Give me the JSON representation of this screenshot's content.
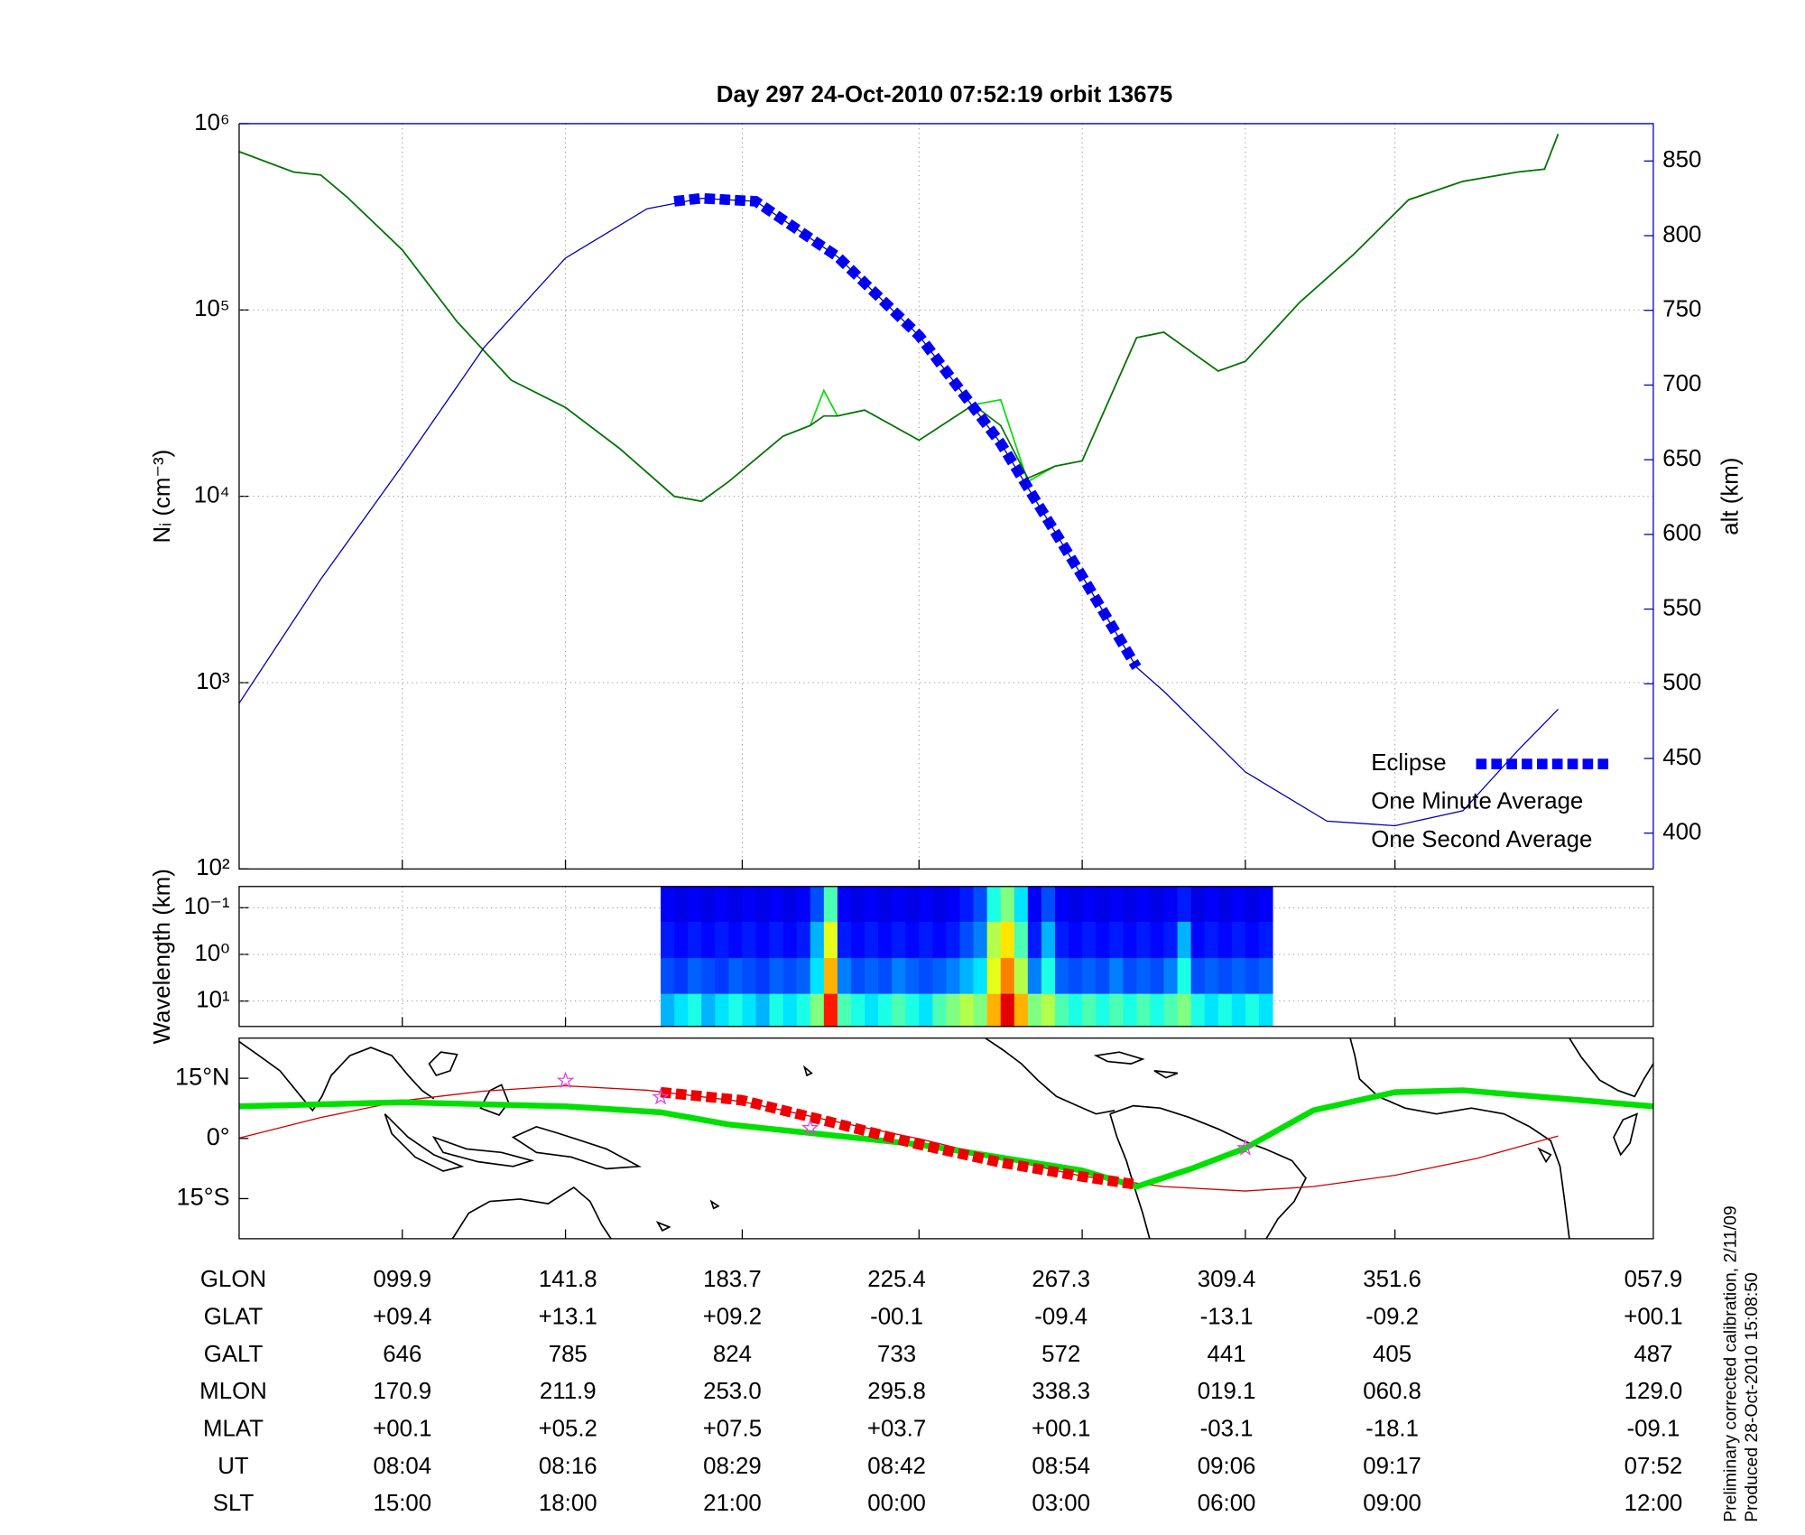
{
  "chart_data": [
    {
      "type": "line",
      "title": "Day 297  24-Oct-2010 07:52:19   orbit 13675",
      "ylabel": "Nᵢ (cm⁻³)",
      "y2label": "alt (km)",
      "y2_color": "#0000cc",
      "log_y": true,
      "grid": true,
      "legend": "lower right",
      "xlim": [
        "07:52",
        "09:36"
      ],
      "ylim": [
        100,
        1000000
      ],
      "yticks": [
        {
          "value": 100,
          "label": "10²"
        },
        {
          "value": 1000,
          "label": "10³"
        },
        {
          "value": 10000,
          "label": "10⁴"
        },
        {
          "value": 100000,
          "label": "10⁵"
        },
        {
          "value": 1000000,
          "label": "10⁶"
        }
      ],
      "y2lim": [
        376,
        875
      ],
      "y2ticks": [
        400,
        450,
        500,
        550,
        600,
        650,
        700,
        750,
        800,
        850
      ],
      "series": [
        {
          "axis": "y2",
          "color": "#0000aa",
          "line_width": 1,
          "x": [
            "07:52",
            "07:58",
            "08:04",
            "08:10",
            "08:16",
            "08:22",
            "08:26",
            "08:30",
            "08:36",
            "08:42",
            "08:48",
            "08:54",
            "08:58",
            "09:00",
            "09:06",
            "09:12",
            "09:17",
            "09:22",
            "09:26",
            "09:29"
          ],
          "values": [
            487,
            570,
            646,
            725,
            785,
            818,
            825,
            823,
            786,
            733,
            661,
            572,
            511,
            495,
            441,
            408,
            405,
            415,
            455,
            483
          ]
        },
        {
          "name": "Eclipse",
          "axis": "y2",
          "color": "#0000ff",
          "line_width": 9,
          "dashed": true,
          "x": [
            "08:24",
            "08:26",
            "08:30",
            "08:36",
            "08:42",
            "08:48",
            "08:54",
            "08:58"
          ],
          "values": [
            823,
            825,
            823,
            786,
            733,
            661,
            572,
            511
          ]
        },
        {
          "name": "One Minute Average",
          "color": "#0a6e0a",
          "legend_color": "#000000",
          "line_width": 1.3,
          "x": [
            "07:52",
            "07:56",
            "07:58",
            "08:00",
            "08:04",
            "08:08",
            "08:12",
            "08:16",
            "08:20",
            "08:24",
            "08:26",
            "08:28",
            "08:32",
            "08:34",
            "08:35",
            "08:36",
            "08:38",
            "08:42",
            "08:46",
            "08:48",
            "08:50",
            "08:52",
            "08:54",
            "08:58",
            "09:00",
            "09:04",
            "09:06",
            "09:10",
            "09:14",
            "09:18",
            "09:22",
            "09:26",
            "09:28",
            "09:29"
          ],
          "values": [
            708000,
            550000,
            530000,
            400000,
            210000,
            87000,
            42000,
            30000,
            18000,
            10000,
            9400,
            12000,
            21000,
            24000,
            27000,
            27000,
            29000,
            20000,
            31000,
            24000,
            12500,
            14500,
            15500,
            71000,
            76000,
            47000,
            53000,
            110000,
            200000,
            390000,
            490000,
            550000,
            570000,
            880000
          ]
        },
        {
          "name": "One Second Average",
          "color": "#00dd00",
          "line_width": 1.3,
          "x": [
            "07:52",
            "07:56",
            "07:58",
            "08:00",
            "08:04",
            "08:08",
            "08:12",
            "08:16",
            "08:20",
            "08:24",
            "08:26",
            "08:28",
            "08:32",
            "08:34",
            "08:35",
            "08:36",
            "08:38",
            "08:42",
            "08:46",
            "08:48",
            "08:50",
            "08:52",
            "08:54",
            "08:58",
            "09:00",
            "09:04",
            "09:06",
            "09:10",
            "09:14",
            "09:18",
            "09:22",
            "09:26",
            "09:28",
            "09:29"
          ],
          "values": [
            708000,
            550000,
            530000,
            400000,
            210000,
            87000,
            42000,
            30000,
            18000,
            10000,
            9400,
            12000,
            21000,
            24000,
            37000,
            27000,
            29000,
            20000,
            31000,
            33000,
            12000,
            14500,
            15500,
            71000,
            76000,
            47000,
            53000,
            110000,
            200000,
            390000,
            490000,
            550000,
            570000,
            880000
          ]
        }
      ]
    },
    {
      "type": "heatmap",
      "ylabel": "Wavelength (km)",
      "log_y": true,
      "grid": true,
      "xlim": [
        "07:52",
        "09:36"
      ],
      "ylim": [
        35,
        0.035
      ],
      "yticks": [
        {
          "value": 0.1,
          "label": "10⁻¹"
        },
        {
          "value": 1,
          "label": "10⁰"
        },
        {
          "value": 10,
          "label": "10¹"
        }
      ],
      "bins": [
        "08:23",
        "08:24",
        "08:25",
        "08:26",
        "08:27",
        "08:28",
        "08:29",
        "08:30",
        "08:31",
        "08:32",
        "08:33",
        "08:34",
        "08:35",
        "08:36",
        "08:37",
        "08:38",
        "08:39",
        "08:40",
        "08:41",
        "08:42",
        "08:43",
        "08:44",
        "08:45",
        "08:46",
        "08:47",
        "08:48",
        "08:49",
        "08:50",
        "08:51",
        "08:52",
        "08:53",
        "08:54",
        "08:55",
        "08:56",
        "08:57",
        "08:58",
        "08:59",
        "09:00",
        "09:01",
        "09:02",
        "09:03",
        "09:04",
        "09:05",
        "09:06",
        "09:07",
        "09:08"
      ],
      "row_edges": [
        0.035,
        0.2,
        1.2,
        7,
        35
      ],
      "zlim": [
        0,
        1
      ],
      "z": [
        [
          0.12,
          0.1,
          0.12,
          0.1,
          0.12,
          0.1,
          0.12,
          0.1,
          0.12,
          0.1,
          0.12,
          0.2,
          0.45,
          0.12,
          0.1,
          0.12,
          0.1,
          0.12,
          0.1,
          0.12,
          0.1,
          0.12,
          0.15,
          0.2,
          0.4,
          0.5,
          0.35,
          0.12,
          0.2,
          0.12,
          0.1,
          0.12,
          0.1,
          0.12,
          0.1,
          0.12,
          0.1,
          0.12,
          0.15,
          0.1,
          0.12,
          0.1,
          0.12,
          0.1,
          0.12
        ],
        [
          0.15,
          0.13,
          0.15,
          0.13,
          0.15,
          0.13,
          0.15,
          0.13,
          0.15,
          0.13,
          0.15,
          0.3,
          0.6,
          0.15,
          0.13,
          0.15,
          0.13,
          0.15,
          0.13,
          0.15,
          0.13,
          0.15,
          0.2,
          0.25,
          0.55,
          0.65,
          0.45,
          0.15,
          0.3,
          0.15,
          0.13,
          0.15,
          0.13,
          0.15,
          0.13,
          0.15,
          0.13,
          0.15,
          0.3,
          0.13,
          0.15,
          0.13,
          0.15,
          0.13,
          0.15
        ],
        [
          0.2,
          0.18,
          0.22,
          0.2,
          0.18,
          0.22,
          0.2,
          0.18,
          0.22,
          0.2,
          0.22,
          0.35,
          0.7,
          0.25,
          0.2,
          0.22,
          0.2,
          0.25,
          0.22,
          0.2,
          0.22,
          0.25,
          0.3,
          0.35,
          0.6,
          0.75,
          0.55,
          0.25,
          0.4,
          0.22,
          0.2,
          0.22,
          0.2,
          0.25,
          0.2,
          0.22,
          0.2,
          0.25,
          0.4,
          0.2,
          0.22,
          0.2,
          0.22,
          0.2,
          0.22
        ],
        [
          0.3,
          0.35,
          0.4,
          0.3,
          0.35,
          0.4,
          0.35,
          0.3,
          0.4,
          0.35,
          0.4,
          0.5,
          0.85,
          0.45,
          0.4,
          0.35,
          0.4,
          0.45,
          0.4,
          0.35,
          0.45,
          0.5,
          0.55,
          0.5,
          0.7,
          0.9,
          0.7,
          0.5,
          0.55,
          0.45,
          0.4,
          0.45,
          0.4,
          0.45,
          0.4,
          0.45,
          0.4,
          0.45,
          0.5,
          0.4,
          0.35,
          0.4,
          0.35,
          0.4,
          0.35
        ]
      ]
    },
    {
      "type": "map",
      "xlim": [
        "07:52",
        "09:36"
      ],
      "ylim": [
        -25,
        25
      ],
      "yticks": [
        {
          "value": 15,
          "label": "15°N"
        },
        {
          "value": 0,
          "label": "0°"
        },
        {
          "value": -15,
          "label": "15°S"
        }
      ],
      "series": [
        {
          "color": "#cc0000",
          "line_width": 1,
          "x": [
            "07:52",
            "07:58",
            "08:04",
            "08:10",
            "08:16",
            "08:22",
            "08:29",
            "08:35",
            "08:42",
            "08:48",
            "08:54",
            "09:00",
            "09:06",
            "09:11",
            "09:17",
            "09:23",
            "09:29"
          ],
          "values": [
            0.1,
            5.2,
            9.4,
            11.8,
            13.1,
            12,
            9.2,
            4.8,
            -0.1,
            -5,
            -9.4,
            -12,
            -13.1,
            -12,
            -9.2,
            -5,
            0.6
          ]
        },
        {
          "color": "#00e000",
          "line_width": 5,
          "x": [
            "07:52",
            "08:04",
            "08:16",
            "08:23",
            "08:28",
            "08:42",
            "08:54",
            "08:58",
            "09:02",
            "09:06",
            "09:11",
            "09:17",
            "09:22",
            "09:36"
          ],
          "values": [
            8,
            9,
            8,
            6.5,
            3.5,
            -1.5,
            -8,
            -12,
            -7.6,
            -2.4,
            7,
            11.5,
            12,
            8
          ]
        },
        {
          "color": "#ee0000",
          "line_width": 9,
          "dashed": true,
          "x": [
            "08:23",
            "08:29",
            "08:35",
            "08:42",
            "08:48",
            "08:54",
            "08:58"
          ],
          "values": [
            11.5,
            9.5,
            4.5,
            -1.5,
            -6,
            -9.5,
            -11.5
          ]
        }
      ],
      "markers": {
        "color": "#e040e0",
        "x": [
          "08:16",
          "08:23",
          "08:34",
          "09:06"
        ],
        "values": [
          14.4,
          10.3,
          2.6,
          -2.4
        ]
      }
    }
  ],
  "table": {
    "rows": [
      {
        "label": "GLON",
        "values": [
          "099.9",
          "141.8",
          "183.7",
          "225.4",
          "267.3",
          "309.4",
          "351.6",
          "057.9"
        ]
      },
      {
        "label": "GLAT",
        "values": [
          "+09.4",
          "+13.1",
          "+09.2",
          "-00.1",
          "-09.4",
          "-13.1",
          "-09.2",
          "+00.1"
        ]
      },
      {
        "label": "GALT",
        "values": [
          "646",
          "785",
          "824",
          "733",
          "572",
          "441",
          "405",
          "487"
        ]
      },
      {
        "label": "MLON",
        "values": [
          "170.9",
          "211.9",
          "253.0",
          "295.8",
          "338.3",
          "019.1",
          "060.8",
          "129.0"
        ]
      },
      {
        "label": "MLAT",
        "values": [
          "+00.1",
          "+05.2",
          "+07.5",
          "+03.7",
          "+00.1",
          "-03.1",
          "-18.1",
          "-09.1"
        ]
      },
      {
        "label": "UT",
        "values": [
          "08:04",
          "08:16",
          "08:29",
          "08:42",
          "08:54",
          "09:06",
          "09:17",
          "07:52"
        ]
      },
      {
        "label": "SLT",
        "values": [
          "15:00",
          "18:00",
          "21:00",
          "00:00",
          "03:00",
          "06:00",
          "09:00",
          "12:00"
        ]
      }
    ]
  },
  "notes": [
    "Preliminary corrected calibration, 2/11/09",
    "Produced 28-Oct-2010 15:08:50"
  ]
}
